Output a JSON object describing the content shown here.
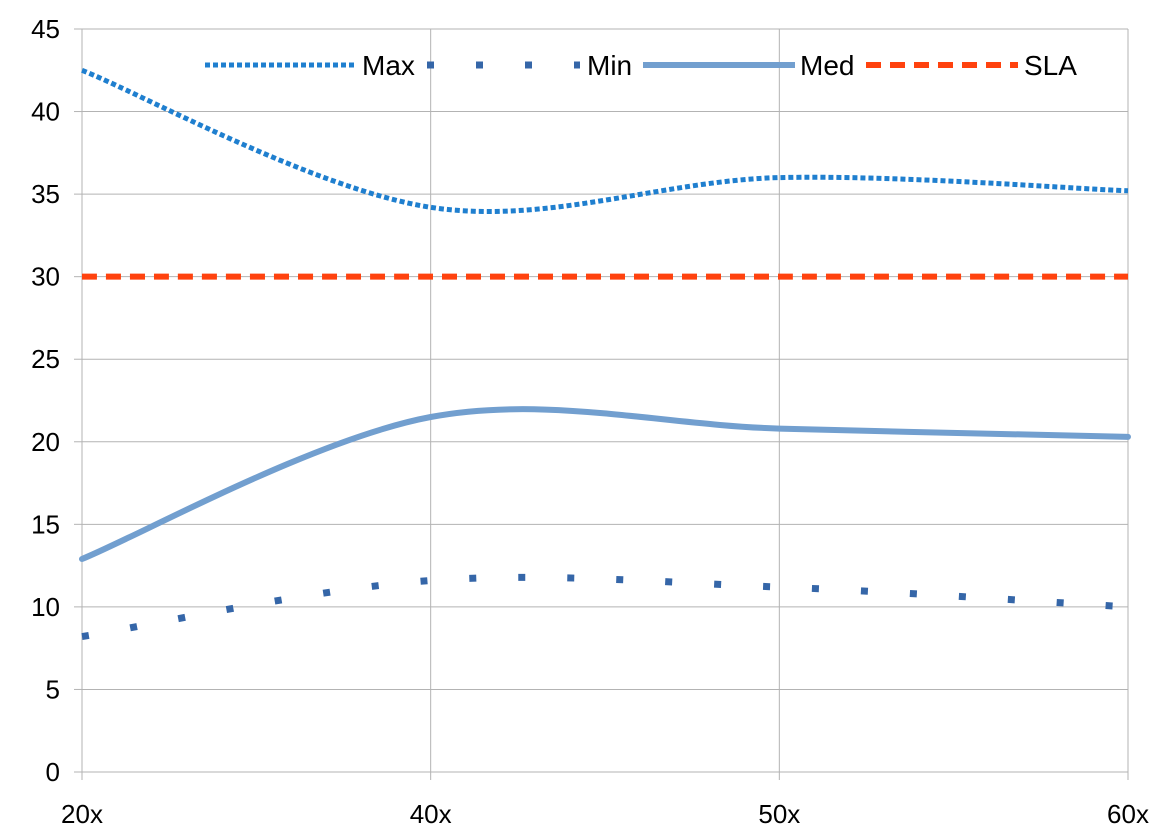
{
  "chart_data": {
    "type": "line",
    "title": "",
    "xlabel": "",
    "ylabel": "",
    "categories": [
      "20x",
      "40x",
      "50x",
      "60x"
    ],
    "ylim": [
      0,
      45
    ],
    "yticks": [
      0,
      5,
      10,
      15,
      20,
      25,
      30,
      35,
      40,
      45
    ],
    "grid": true,
    "smooth": true,
    "legend_placement": "top",
    "series": [
      {
        "name": "Max",
        "values": [
          42.5,
          34.2,
          36.0,
          35.2
        ],
        "color": "#1f7fcf",
        "style": "dotted"
      },
      {
        "name": "Min",
        "values": [
          8.2,
          11.6,
          11.2,
          10.0
        ],
        "color": "#3566a8",
        "style": "sparse-dotted"
      },
      {
        "name": "Med",
        "values": [
          12.9,
          21.5,
          20.8,
          20.3
        ],
        "color": "#729fcf",
        "style": "solid"
      },
      {
        "name": "SLA",
        "values": [
          30,
          30,
          30,
          30
        ],
        "color": "#ff420e",
        "style": "dashed"
      }
    ]
  }
}
